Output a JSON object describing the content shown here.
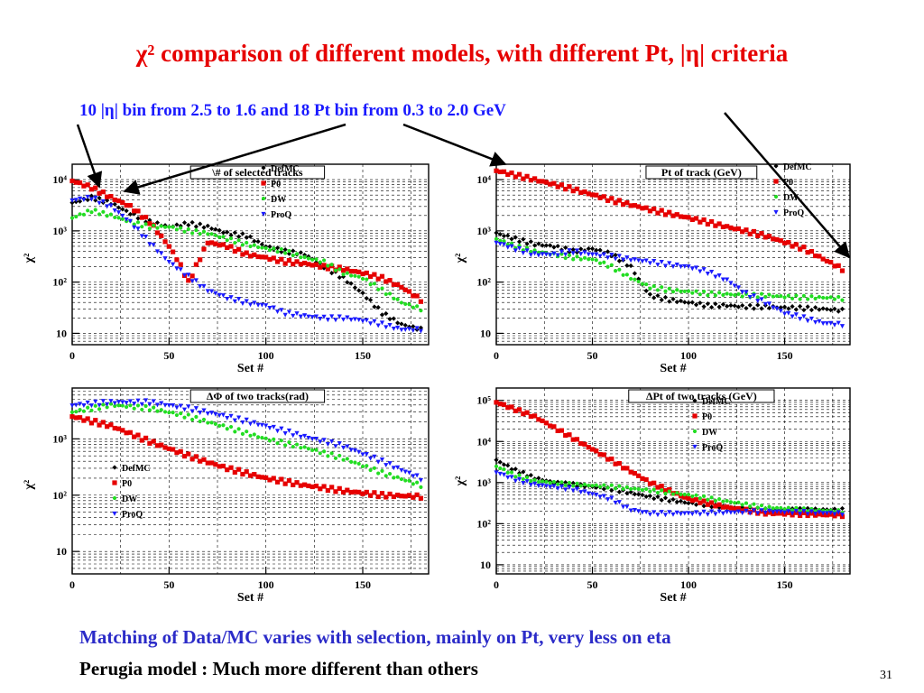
{
  "slide": {
    "title": "χ² comparison of different models, with different Pt, |η| criteria",
    "subtitle": "10 |η| bin from 2.5 to 1.6  and 18 Pt bin from 0.3 to 2.0 GeV",
    "notes": [
      "Matching of Data/MC varies with selection, mainly on Pt, very less on eta",
      "Perugia model : Much more different than others"
    ],
    "page_number": "31"
  },
  "colors": {
    "title": "#e60000",
    "subtitle": "#1a1aff",
    "note": "#2b2bc8",
    "arrow": "#000000"
  },
  "chart_data": [
    {
      "type": "scatter",
      "title": "\\# of selected tracks",
      "xlabel": "Set #",
      "ylabel": "χ²",
      "xlim": [
        0,
        184
      ],
      "ylim": [
        6,
        20000
      ],
      "yscale": "log",
      "xticks": [
        "0",
        "50",
        "100",
        "150"
      ],
      "yticks": [
        {
          "v": 10,
          "label": "10"
        },
        {
          "v": 100,
          "label": "10²"
        },
        {
          "v": 1000,
          "label": "10³"
        },
        {
          "v": 10000,
          "label": "10⁴"
        }
      ],
      "grid": true,
      "legend": "top-right",
      "series": [
        {
          "name": "DefMC",
          "color": "#000000",
          "marker": "diamond",
          "x": [
            0,
            10,
            20,
            30,
            40,
            50,
            60,
            70,
            80,
            90,
            100,
            110,
            120,
            130,
            140,
            150,
            160,
            170,
            180
          ],
          "y": [
            3500,
            4500,
            3500,
            2200,
            1500,
            1200,
            1400,
            1200,
            900,
            800,
            500,
            400,
            350,
            200,
            120,
            60,
            25,
            15,
            12
          ]
        },
        {
          "name": "P0",
          "color": "#e60000",
          "marker": "square",
          "x": [
            0,
            10,
            20,
            30,
            40,
            50,
            55,
            60,
            70,
            80,
            90,
            100,
            110,
            120,
            130,
            140,
            150,
            160,
            170,
            180
          ],
          "y": [
            9500,
            7000,
            4500,
            3000,
            1500,
            500,
            250,
            100,
            600,
            500,
            350,
            300,
            250,
            230,
            200,
            180,
            150,
            120,
            80,
            45
          ]
        },
        {
          "name": "DW",
          "color": "#22dd22",
          "marker": "circle",
          "x": [
            0,
            10,
            20,
            30,
            40,
            50,
            60,
            70,
            80,
            90,
            100,
            110,
            120,
            130,
            140,
            150,
            160,
            170,
            180
          ],
          "y": [
            1800,
            2500,
            2000,
            1500,
            1200,
            1200,
            1000,
            900,
            700,
            550,
            450,
            400,
            300,
            250,
            150,
            120,
            70,
            40,
            30
          ]
        },
        {
          "name": "ProQ",
          "color": "#1a1aff",
          "marker": "triangle-down",
          "x": [
            0,
            10,
            20,
            30,
            40,
            50,
            60,
            70,
            80,
            90,
            100,
            110,
            120,
            130,
            140,
            150,
            160,
            170,
            180
          ],
          "y": [
            4000,
            4500,
            3000,
            1500,
            600,
            250,
            130,
            70,
            50,
            40,
            35,
            25,
            22,
            20,
            20,
            18,
            15,
            12,
            12
          ]
        }
      ]
    },
    {
      "type": "scatter",
      "title": "Pt of track (GeV)",
      "xlabel": "Set #",
      "ylabel": "χ²",
      "xlim": [
        0,
        184
      ],
      "ylim": [
        6,
        20000
      ],
      "yscale": "log",
      "xticks": [
        "0",
        "50",
        "100",
        "150"
      ],
      "yticks": [
        {
          "v": 10,
          "label": "10"
        },
        {
          "v": 100,
          "label": "10²"
        },
        {
          "v": 1000,
          "label": "10³"
        },
        {
          "v": 10000,
          "label": "10⁴"
        }
      ],
      "grid": true,
      "legend": "top-right",
      "series": [
        {
          "name": "DefMC",
          "color": "#000000",
          "marker": "diamond",
          "x": [
            0,
            10,
            20,
            30,
            40,
            50,
            60,
            70,
            75,
            80,
            90,
            100,
            110,
            120,
            130,
            140,
            150,
            160,
            170,
            180
          ],
          "y": [
            900,
            700,
            550,
            500,
            400,
            450,
            350,
            200,
            100,
            55,
            45,
            40,
            35,
            35,
            33,
            33,
            32,
            31,
            30,
            28
          ]
        },
        {
          "name": "P0",
          "color": "#e60000",
          "marker": "square",
          "x": [
            0,
            20,
            40,
            60,
            80,
            100,
            120,
            140,
            160,
            180
          ],
          "y": [
            15000,
            10000,
            6500,
            4000,
            2600,
            1800,
            1200,
            800,
            450,
            180
          ]
        },
        {
          "name": "DW",
          "color": "#22dd22",
          "marker": "circle",
          "x": [
            0,
            10,
            20,
            30,
            40,
            50,
            60,
            70,
            80,
            90,
            100,
            110,
            120,
            130,
            140,
            150,
            160,
            170,
            180
          ],
          "y": [
            700,
            500,
            400,
            350,
            300,
            280,
            200,
            120,
            80,
            70,
            65,
            60,
            58,
            55,
            55,
            52,
            50,
            50,
            48
          ]
        },
        {
          "name": "ProQ",
          "color": "#1a1aff",
          "marker": "triangle-down",
          "x": [
            0,
            10,
            20,
            30,
            40,
            50,
            60,
            70,
            80,
            90,
            100,
            110,
            120,
            130,
            140,
            150,
            160,
            170,
            180
          ],
          "y": [
            600,
            450,
            350,
            350,
            400,
            350,
            320,
            280,
            250,
            220,
            200,
            160,
            110,
            60,
            40,
            25,
            20,
            16,
            15
          ]
        }
      ]
    },
    {
      "type": "scatter",
      "title": "ΔΦ of two tracks(rad)",
      "xlabel": "Set #",
      "ylabel": "χ²",
      "xlim": [
        0,
        184
      ],
      "ylim": [
        4,
        8000
      ],
      "yscale": "log",
      "xticks": [
        "0",
        "50",
        "100",
        "150"
      ],
      "yticks": [
        {
          "v": 10,
          "label": "10"
        },
        {
          "v": 100,
          "label": "10²"
        },
        {
          "v": 1000,
          "label": "10³"
        }
      ],
      "grid": true,
      "legend": "bottom-left",
      "series": [
        {
          "name": "DefMC",
          "color": "#000000",
          "marker": "diamond",
          "x": [],
          "y": []
        },
        {
          "name": "P0",
          "color": "#e60000",
          "marker": "square",
          "x": [
            0,
            20,
            40,
            60,
            80,
            100,
            120,
            140,
            160,
            180
          ],
          "y": [
            2500,
            1700,
            900,
            500,
            300,
            200,
            150,
            120,
            100,
            95
          ]
        },
        {
          "name": "DW",
          "color": "#22dd22",
          "marker": "circle",
          "x": [
            0,
            20,
            40,
            60,
            80,
            100,
            120,
            140,
            160,
            180
          ],
          "y": [
            3000,
            4000,
            3500,
            2500,
            1600,
            1000,
            700,
            450,
            250,
            150
          ]
        },
        {
          "name": "ProQ",
          "color": "#1a1aff",
          "marker": "triangle-down",
          "x": [
            0,
            20,
            40,
            60,
            80,
            100,
            120,
            140,
            160,
            180
          ],
          "y": [
            4000,
            4500,
            4500,
            3500,
            2500,
            1700,
            1100,
            750,
            400,
            200
          ]
        }
      ]
    },
    {
      "type": "scatter",
      "title": "ΔPt of two tracks (GeV)",
      "xlabel": "Set #",
      "ylabel": "χ²",
      "xlim": [
        0,
        184
      ],
      "ylim": [
        6,
        200000
      ],
      "yscale": "log",
      "xticks": [
        "0",
        "50",
        "100",
        "150"
      ],
      "yticks": [
        {
          "v": 10,
          "label": "10"
        },
        {
          "v": 100,
          "label": "10²"
        },
        {
          "v": 1000,
          "label": "10³"
        },
        {
          "v": 10000,
          "label": "10⁴"
        },
        {
          "v": 100000,
          "label": "10⁵"
        }
      ],
      "grid": true,
      "legend": "top-right",
      "series": [
        {
          "name": "DefMC",
          "color": "#000000",
          "marker": "diamond",
          "x": [
            0,
            10,
            20,
            30,
            40,
            60,
            80,
            100,
            120,
            140,
            160,
            180
          ],
          "y": [
            3500,
            2000,
            1300,
            1000,
            900,
            700,
            450,
            320,
            250,
            220,
            220,
            220
          ]
        },
        {
          "name": "P0",
          "color": "#e60000",
          "marker": "square",
          "x": [
            0,
            20,
            40,
            60,
            80,
            100,
            120,
            140,
            160,
            180
          ],
          "y": [
            90000,
            40000,
            12000,
            3500,
            1000,
            400,
            250,
            180,
            170,
            160
          ]
        },
        {
          "name": "DW",
          "color": "#22dd22",
          "marker": "circle",
          "x": [
            0,
            10,
            20,
            40,
            60,
            80,
            100,
            120,
            140,
            160,
            180
          ],
          "y": [
            2500,
            1500,
            1100,
            900,
            800,
            650,
            500,
            350,
            250,
            220,
            200
          ]
        },
        {
          "name": "ProQ",
          "color": "#1a1aff",
          "marker": "triangle-down",
          "x": [
            0,
            10,
            20,
            40,
            60,
            70,
            80,
            100,
            120,
            140,
            160,
            180
          ],
          "y": [
            1800,
            1200,
            900,
            700,
            400,
            220,
            180,
            180,
            190,
            200,
            190,
            180
          ]
        }
      ]
    }
  ]
}
